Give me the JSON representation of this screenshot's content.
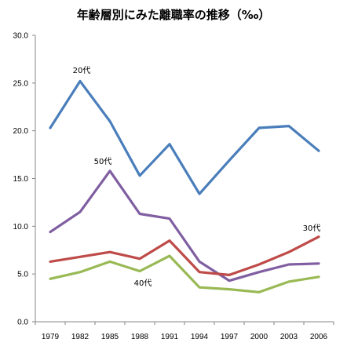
{
  "chart_data": {
    "type": "line",
    "title": "年齢層別にみた離職率の推移（‰）",
    "x": [
      "1979",
      "1982",
      "1985",
      "1988",
      "1991",
      "1994",
      "1997",
      "2000",
      "2003",
      "2006"
    ],
    "ylim": [
      0,
      30
    ],
    "yticks": [
      "0.0",
      "5.0",
      "10.0",
      "15.0",
      "20.0",
      "25.0",
      "30.0"
    ],
    "grid": false,
    "series": [
      {
        "name": "20代",
        "color": "#4a7ebb",
        "values": [
          20.3,
          25.2,
          21.0,
          15.3,
          18.6,
          13.4,
          16.9,
          20.3,
          20.5,
          17.9
        ]
      },
      {
        "name": "50代",
        "color": "#7f5ea1",
        "values": [
          9.4,
          11.5,
          15.8,
          11.3,
          10.8,
          6.3,
          4.3,
          5.2,
          6.0,
          6.1
        ]
      },
      {
        "name": "30代",
        "color": "#be4b48",
        "values": [
          6.3,
          6.8,
          7.3,
          6.6,
          8.5,
          5.2,
          4.9,
          6.0,
          7.3,
          8.9
        ]
      },
      {
        "name": "40代",
        "color": "#98b954",
        "values": [
          4.5,
          5.2,
          6.3,
          5.3,
          6.9,
          3.6,
          3.4,
          3.1,
          4.2,
          4.7
        ]
      }
    ]
  }
}
